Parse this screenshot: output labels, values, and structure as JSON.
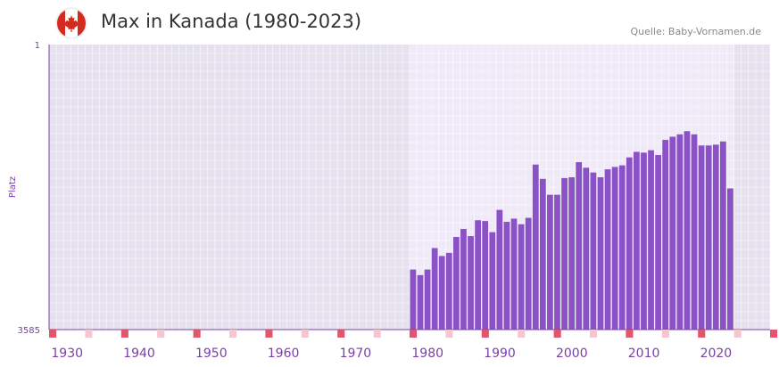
{
  "header": {
    "title": "Max in Kanada (1980-2023)",
    "source": "Quelle: Baby-Vornamen.de",
    "flag_icon": "canada-flag-icon"
  },
  "colors": {
    "bar": "#8a52c6",
    "axis": "#7b3fa8",
    "marker_dark": "#e0566e",
    "marker_light": "#f4c6cf",
    "band_out": "#e6e1ef",
    "band_in": "#efe9f8",
    "grid": "#ffffff",
    "flag_red": "#d52b1e"
  },
  "chart_data": {
    "type": "bar",
    "title": "Max in Kanada (1980-2023)",
    "xlabel": "",
    "ylabel": "Platz",
    "y_reversed": true,
    "ylim": [
      1,
      3585
    ],
    "y_ticks": [
      "1",
      "3585"
    ],
    "x_range": [
      1928,
      2028
    ],
    "x_ticks": [
      1930,
      1940,
      1950,
      1960,
      1970,
      1980,
      1990,
      2000,
      2010,
      2020
    ],
    "highlight_range": [
      1978,
      2022
    ],
    "grid": true,
    "x": [
      1978,
      1979,
      1980,
      1981,
      1982,
      1983,
      1984,
      1985,
      1986,
      1987,
      1988,
      1989,
      1990,
      1991,
      1992,
      1993,
      1994,
      1995,
      1996,
      1997,
      1998,
      1999,
      2000,
      2001,
      2002,
      2003,
      2004,
      2005,
      2006,
      2007,
      2008,
      2009,
      2010,
      2011,
      2012,
      2013,
      2014,
      2015,
      2016,
      2017,
      2018,
      2019,
      2020,
      2021,
      2022
    ],
    "values": [
      2830,
      2900,
      2830,
      2560,
      2660,
      2620,
      2420,
      2320,
      2410,
      2210,
      2220,
      2360,
      2080,
      2230,
      2190,
      2260,
      2180,
      1510,
      1690,
      1890,
      1890,
      1680,
      1670,
      1480,
      1550,
      1610,
      1670,
      1570,
      1540,
      1520,
      1420,
      1350,
      1360,
      1330,
      1390,
      1200,
      1160,
      1130,
      1090,
      1130,
      1270,
      1270,
      1260,
      1220,
      1810
    ]
  }
}
